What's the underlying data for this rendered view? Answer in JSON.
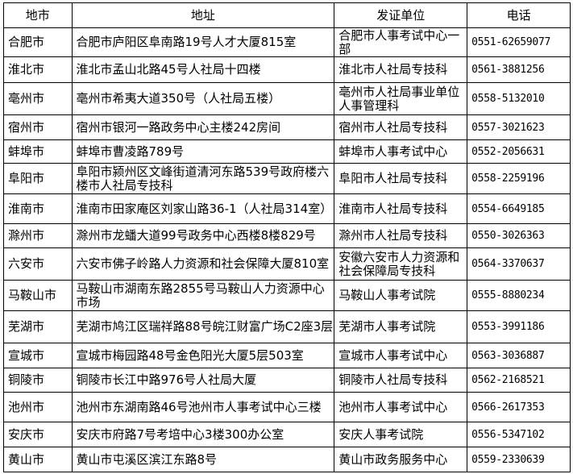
{
  "headers": [
    "地市",
    "地址",
    "发证单位",
    "电话"
  ],
  "rows": [
    {
      "city": "合肥市",
      "address": "合肥市庐阳区阜南路19号人才大厦815室",
      "issuer": "合肥市人事考试中心一部",
      "phone": "0551-62659077"
    },
    {
      "city": "淮北市",
      "address": "淮北市孟山北路45号人社局十四楼",
      "issuer": "淮北市人社局专技科",
      "phone": "0561-3881256"
    },
    {
      "city": "亳州市",
      "address": "亳州市希夷大道350号（人社局五楼）",
      "issuer": "亳州市人社局事业单位人事管理科",
      "phone": "0558-5132010"
    },
    {
      "city": "宿州市",
      "address": "宿州市银河一路政务中心主楼242房间",
      "issuer": "宿州市人社局专技科",
      "phone": "0557-3021623"
    },
    {
      "city": "蚌埠市",
      "address": "蚌埠市曹凌路789号",
      "issuer": "蚌埠市人事考试中心",
      "phone": "0552-2056631"
    },
    {
      "city": "阜阳市",
      "address": "阜阳市颍州区文峰街道清河东路539号政府楼六楼市人社局专技科",
      "issuer": "阜阳市人社局专技科",
      "phone": "0558-2259196"
    },
    {
      "city": "淮南市",
      "address": "淮南市田家庵区刘家山路36-1（人社局314室）",
      "issuer": "淮南市人社局专技科",
      "phone": "0554-6649185"
    },
    {
      "city": "滁州市",
      "address": "滁州市龙蟠大道99号政务中心西楼8楼829号",
      "issuer": "滁州市人社局专技科",
      "phone": "0550-3026363"
    },
    {
      "city": "六安市",
      "address": "六安市佛子岭路人力资源和社会保障大厦810室",
      "issuer": "安徽六安市人力资源和社会保障局专技科",
      "phone": "0564-3370637"
    },
    {
      "city": "马鞍山市",
      "address": "马鞍山市湖南东路2855号马鞍山人力资源中心市场",
      "issuer": "马鞍山人事考试院",
      "phone": "0555-8880234"
    },
    {
      "city": "芜湖市",
      "address": "芜湖市鸠江区瑞祥路88号皖江财富广场C2座3层",
      "issuer": "芜湖市人事考试院",
      "phone": "0553-3991186"
    },
    {
      "city": "宣城市",
      "address": "宣城市梅园路48号金色阳光大厦5层503室",
      "issuer": "宣城市人事考试中心",
      "phone": "0563-3036887"
    },
    {
      "city": "铜陵市",
      "address": "铜陵市长江中路976号人社局大厦",
      "issuer": "铜陵市人社局专技科",
      "phone": "0562-2168521"
    },
    {
      "city": "池州市",
      "address": "池州市东湖南路46号池州市人事考试中心三楼",
      "issuer": "池州市人事考试中心",
      "phone": "0566-2617353"
    },
    {
      "city": "安庆市",
      "address": "安庆市府路7号考培中心3楼300办公室",
      "issuer": "安庆人事考试院",
      "phone": "0556-5347102"
    },
    {
      "city": "黄山市",
      "address": "黄山市屯溪区滨江东路8号",
      "issuer": "黄山市政务服务中心",
      "phone": "0559-2330639"
    }
  ]
}
